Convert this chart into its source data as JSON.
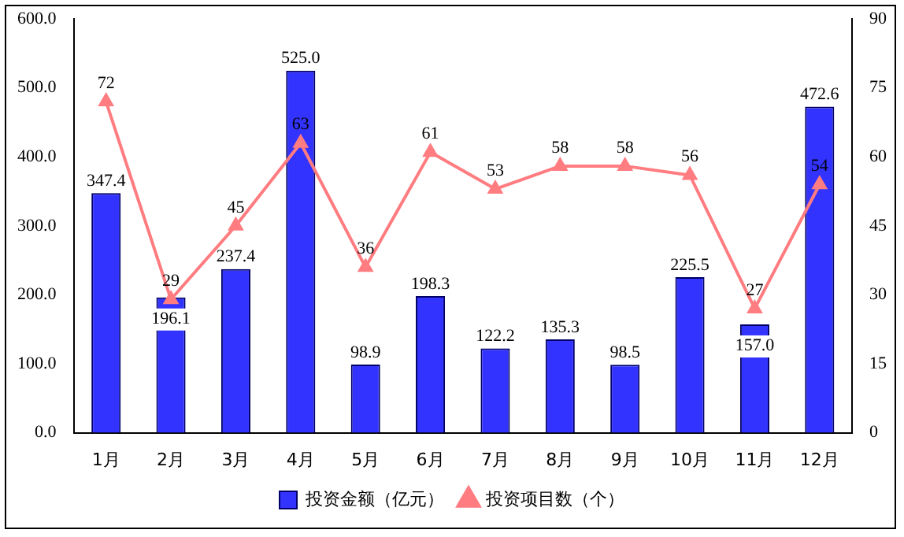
{
  "chart_data": {
    "type": "bar",
    "categories": [
      "1月",
      "2月",
      "3月",
      "4月",
      "5月",
      "6月",
      "7月",
      "8月",
      "9月",
      "10月",
      "11月",
      "12月"
    ],
    "series": [
      {
        "name": "投资金额（亿元）",
        "color": "#3333ff",
        "values": [
          347.4,
          196.1,
          237.4,
          525.0,
          98.9,
          198.3,
          122.2,
          135.3,
          98.5,
          225.5,
          157.0,
          472.6
        ],
        "value_labels": [
          "347.4",
          "196.1",
          "237.4",
          "525.0",
          "98.9",
          "198.3",
          "122.2",
          "135.3",
          "98.5",
          "225.5",
          "157.0",
          "472.6"
        ]
      },
      {
        "name": "投资项目数（个）",
        "type": "line",
        "axis": "y2",
        "color": "#ff7c80",
        "marker": "triangle",
        "values": [
          72,
          29,
          45,
          63,
          36,
          61,
          53,
          58,
          58,
          56,
          27,
          54
        ],
        "value_labels": [
          "72",
          "29",
          "45",
          "63",
          "36",
          "61",
          "53",
          "58",
          "58",
          "56",
          "27",
          "54"
        ]
      }
    ],
    "ylim": [
      0,
      600
    ],
    "yticks": [
      {
        "value": 0,
        "label": "0.0"
      },
      {
        "value": 100,
        "label": "100.0"
      },
      {
        "value": 200,
        "label": "200.0"
      },
      {
        "value": 300,
        "label": "300.0"
      },
      {
        "value": 400,
        "label": "400.0"
      },
      {
        "value": 500,
        "label": "500.0"
      },
      {
        "value": 600,
        "label": "600.0"
      }
    ],
    "y2lim": [
      0,
      90
    ],
    "y2ticks": [
      0,
      15,
      30,
      45,
      60,
      75,
      90
    ],
    "grid": false,
    "legend": "bottom"
  }
}
